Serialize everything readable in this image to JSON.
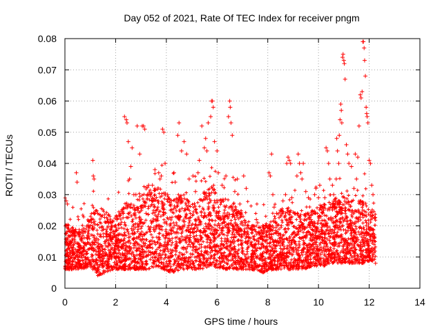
{
  "chart_data": {
    "type": "scatter",
    "title": "Day 052 of 2021, Rate Of TEC Index for receiver pngm",
    "xlabel": "GPS time / hours",
    "ylabel": "ROTI / TECUs",
    "xlim": [
      0,
      14
    ],
    "ylim": [
      0,
      0.08
    ],
    "x_ticks": [
      0,
      2,
      4,
      6,
      8,
      10,
      12,
      14
    ],
    "y_ticks": [
      0,
      0.01,
      0.02,
      0.03,
      0.04,
      0.05,
      0.06,
      0.07,
      0.08
    ],
    "x_tick_labels": [
      "0",
      "2",
      "4",
      "6",
      "8",
      "10",
      "12",
      "14"
    ],
    "y_tick_labels": [
      "0",
      "0.01",
      "0.02",
      "0.03",
      "0.04",
      "0.05",
      "0.06",
      "0.07",
      "0.08"
    ],
    "grid": true,
    "marker": "plus",
    "series_color": "#ff0000",
    "series": [
      {
        "name": "ROTI",
        "points": [
          [
            0.05,
            0.028
          ],
          [
            0.1,
            0.027
          ],
          [
            0.15,
            0.019
          ],
          [
            0.2,
            0.015
          ],
          [
            0.3,
            0.012
          ],
          [
            0.4,
            0.01
          ],
          [
            0.45,
            0.037
          ],
          [
            0.48,
            0.034
          ],
          [
            0.55,
            0.013
          ],
          [
            0.7,
            0.009
          ],
          [
            0.85,
            0.014
          ],
          [
            1.05,
            0.022
          ],
          [
            1.1,
            0.041
          ],
          [
            1.12,
            0.036
          ],
          [
            1.15,
            0.035
          ],
          [
            1.25,
            0.016
          ],
          [
            1.4,
            0.012
          ],
          [
            1.5,
            0.008
          ],
          [
            1.55,
            0.005
          ],
          [
            1.65,
            0.011
          ],
          [
            1.8,
            0.017
          ],
          [
            1.95,
            0.013
          ],
          [
            2.05,
            0.022
          ],
          [
            2.1,
            0.01
          ],
          [
            2.2,
            0.015
          ],
          [
            2.3,
            0.024
          ],
          [
            2.35,
            0.055
          ],
          [
            2.42,
            0.054
          ],
          [
            2.45,
            0.053
          ],
          [
            2.5,
            0.047
          ],
          [
            2.55,
            0.035
          ],
          [
            2.6,
            0.039
          ],
          [
            2.65,
            0.045
          ],
          [
            2.72,
            0.03
          ],
          [
            2.8,
            0.03
          ],
          [
            2.85,
            0.052
          ],
          [
            2.95,
            0.043
          ],
          [
            3.05,
            0.052
          ],
          [
            3.1,
            0.052
          ],
          [
            3.15,
            0.051
          ],
          [
            3.2,
            0.024
          ],
          [
            3.3,
            0.033
          ],
          [
            3.45,
            0.033
          ],
          [
            3.55,
            0.038
          ],
          [
            3.6,
            0.02
          ],
          [
            3.7,
            0.037
          ],
          [
            3.75,
            0.035
          ],
          [
            3.8,
            0.036
          ],
          [
            3.85,
            0.051
          ],
          [
            3.9,
            0.05
          ],
          [
            3.95,
            0.04
          ],
          [
            4.05,
            0.03
          ],
          [
            4.2,
            0.028
          ],
          [
            4.3,
            0.037
          ],
          [
            4.35,
            0.034
          ],
          [
            4.45,
            0.049
          ],
          [
            4.5,
            0.053
          ],
          [
            4.6,
            0.044
          ],
          [
            4.7,
            0.047
          ],
          [
            4.8,
            0.043
          ],
          [
            4.9,
            0.035
          ],
          [
            5.05,
            0.036
          ],
          [
            5.15,
            0.031
          ],
          [
            5.25,
            0.037
          ],
          [
            5.3,
            0.041
          ],
          [
            5.4,
            0.052
          ],
          [
            5.5,
            0.045
          ],
          [
            5.55,
            0.048
          ],
          [
            5.6,
            0.044
          ],
          [
            5.65,
            0.053
          ],
          [
            5.75,
            0.055
          ],
          [
            5.78,
            0.06
          ],
          [
            5.82,
            0.06
          ],
          [
            5.85,
            0.058
          ],
          [
            5.9,
            0.047
          ],
          [
            6.0,
            0.044
          ],
          [
            6.05,
            0.037
          ],
          [
            6.2,
            0.033
          ],
          [
            6.35,
            0.036
          ],
          [
            6.45,
            0.055
          ],
          [
            6.5,
            0.06
          ],
          [
            6.52,
            0.058
          ],
          [
            6.55,
            0.053
          ],
          [
            6.6,
            0.049
          ],
          [
            6.7,
            0.031
          ],
          [
            6.8,
            0.035
          ],
          [
            6.9,
            0.027
          ],
          [
            7.05,
            0.036
          ],
          [
            7.15,
            0.032
          ],
          [
            7.3,
            0.016
          ],
          [
            7.4,
            0.019
          ],
          [
            7.5,
            0.014
          ],
          [
            7.55,
            0.022
          ],
          [
            7.6,
            0.021
          ],
          [
            7.7,
            0.017
          ],
          [
            7.8,
            0.02
          ],
          [
            7.95,
            0.02
          ],
          [
            8.05,
            0.037
          ],
          [
            8.1,
            0.036
          ],
          [
            8.15,
            0.043
          ],
          [
            8.2,
            0.03
          ],
          [
            8.25,
            0.026
          ],
          [
            8.35,
            0.024
          ],
          [
            8.5,
            0.025
          ],
          [
            8.6,
            0.028
          ],
          [
            8.7,
            0.03
          ],
          [
            8.75,
            0.04
          ],
          [
            8.8,
            0.042
          ],
          [
            8.85,
            0.041
          ],
          [
            8.9,
            0.04
          ],
          [
            8.95,
            0.029
          ],
          [
            9.05,
            0.024
          ],
          [
            9.15,
            0.036
          ],
          [
            9.2,
            0.043
          ],
          [
            9.25,
            0.04
          ],
          [
            9.3,
            0.037
          ],
          [
            9.35,
            0.035
          ],
          [
            9.4,
            0.04
          ],
          [
            9.5,
            0.031
          ],
          [
            9.6,
            0.029
          ],
          [
            9.65,
            0.02
          ],
          [
            9.7,
            0.022
          ],
          [
            9.75,
            0.021
          ],
          [
            9.85,
            0.03
          ],
          [
            9.9,
            0.032
          ],
          [
            10.0,
            0.029
          ],
          [
            10.05,
            0.033
          ],
          [
            10.1,
            0.023
          ],
          [
            10.2,
            0.025
          ],
          [
            10.25,
            0.029
          ],
          [
            10.3,
            0.045
          ],
          [
            10.35,
            0.044
          ],
          [
            10.4,
            0.04
          ],
          [
            10.45,
            0.035
          ],
          [
            10.55,
            0.033
          ],
          [
            10.6,
            0.03
          ],
          [
            10.65,
            0.026
          ],
          [
            10.7,
            0.035
          ],
          [
            10.72,
            0.048
          ],
          [
            10.75,
            0.044
          ],
          [
            10.8,
            0.04
          ],
          [
            10.82,
            0.049
          ],
          [
            10.85,
            0.054
          ],
          [
            10.88,
            0.059
          ],
          [
            10.9,
            0.057
          ],
          [
            10.92,
            0.053
          ],
          [
            10.95,
            0.074
          ],
          [
            10.97,
            0.075
          ],
          [
            11.0,
            0.073
          ],
          [
            11.02,
            0.072
          ],
          [
            11.05,
            0.067
          ],
          [
            11.1,
            0.046
          ],
          [
            11.15,
            0.043
          ],
          [
            11.2,
            0.04
          ],
          [
            11.3,
            0.039
          ],
          [
            11.4,
            0.032
          ],
          [
            11.45,
            0.043
          ],
          [
            11.5,
            0.035
          ],
          [
            11.55,
            0.042
          ],
          [
            11.6,
            0.052
          ],
          [
            11.65,
            0.062
          ],
          [
            11.68,
            0.061
          ],
          [
            11.72,
            0.063
          ],
          [
            11.75,
            0.079
          ],
          [
            11.77,
            0.079
          ],
          [
            11.8,
            0.077
          ],
          [
            11.82,
            0.073
          ],
          [
            11.85,
            0.068
          ],
          [
            11.88,
            0.058
          ],
          [
            11.9,
            0.056
          ],
          [
            11.92,
            0.055
          ],
          [
            11.95,
            0.053
          ],
          [
            12.0,
            0.041
          ],
          [
            12.05,
            0.04
          ],
          [
            12.1,
            0.033
          ],
          [
            12.15,
            0.03
          ],
          [
            12.2,
            0.016
          ],
          [
            12.25,
            0.008
          ]
        ]
      }
    ]
  }
}
